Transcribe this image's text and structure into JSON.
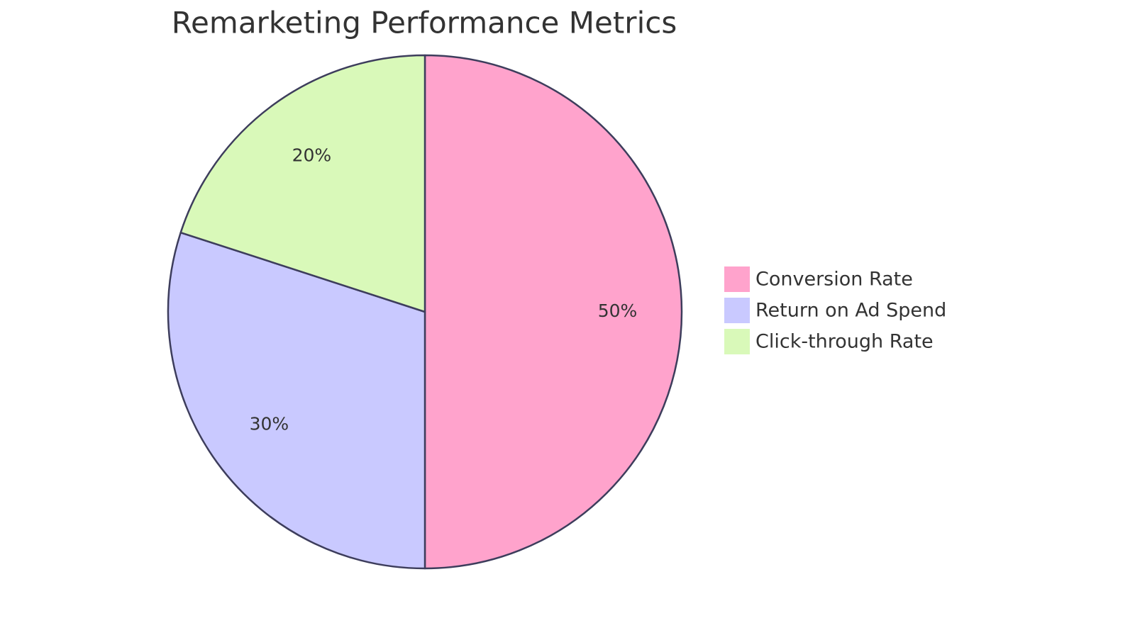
{
  "chart_data": {
    "type": "pie",
    "title": "Remarketing Performance Metrics",
    "categories": [
      "Conversion Rate",
      "Return on Ad Spend",
      "Click-through Rate"
    ],
    "values": [
      50,
      30,
      20
    ],
    "value_labels": [
      "50%",
      "30%",
      "20%"
    ],
    "colors": [
      "#ffa3cc",
      "#c9c9ff",
      "#d9f9b9"
    ],
    "legend": "right"
  }
}
